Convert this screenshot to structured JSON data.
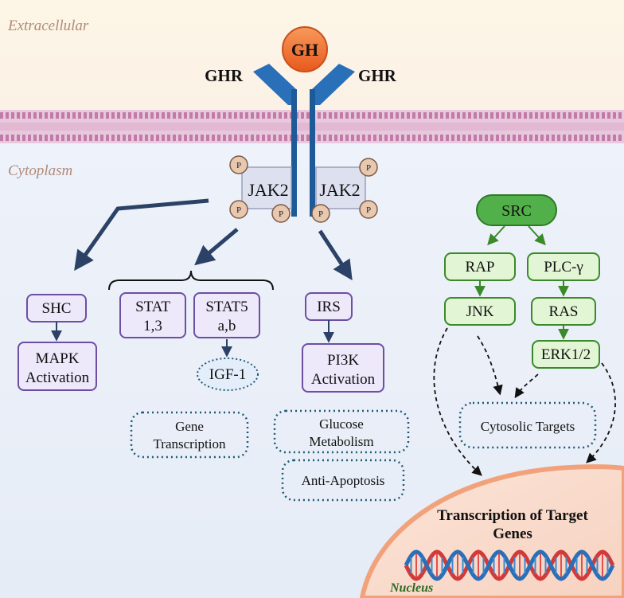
{
  "regions": {
    "extracellular": "Extracellular",
    "cytoplasm": "Cytoplasm",
    "nucleus": "Nucleus"
  },
  "ligand": "GH",
  "receptors": {
    "left": "GHR",
    "right": "GHR"
  },
  "jak": {
    "left": "JAK2",
    "right": "JAK2",
    "phospho": "P"
  },
  "left_pathways": {
    "shc": "SHC",
    "mapk": [
      "MAPK",
      "Activation"
    ],
    "stat13": [
      "STAT",
      "1,3"
    ],
    "stat5": [
      "STAT5",
      "a,b"
    ],
    "igf1": "IGF-1",
    "gene_transcription": [
      "Gene",
      "Transcription"
    ],
    "irs": "IRS",
    "pi3k": [
      "PI3K",
      "Activation"
    ],
    "glucose": [
      "Glucose",
      "Metabolism"
    ],
    "anti_apoptosis": "Anti-Apoptosis"
  },
  "src_pathway": {
    "src": "SRC",
    "rap": "RAP",
    "plc": "PLC-γ",
    "jnk": "JNK",
    "ras": "RAS",
    "erk": "ERK1/2",
    "cytosolic": "Cytosolic Targets",
    "transcription": [
      "Transcription of Target",
      "Genes"
    ]
  },
  "colors": {
    "purple_fill": "#ede8fa",
    "purple_stroke": "#6c4fa3",
    "green_fill": "#e2f5d4",
    "green_stroke": "#3a8a2a",
    "src_fill": "#52b04a",
    "receptor": "#2a70b8",
    "arrow_dark": "#2b4266",
    "dotted": "#1f5a78",
    "gh": "#f06a2a"
  }
}
